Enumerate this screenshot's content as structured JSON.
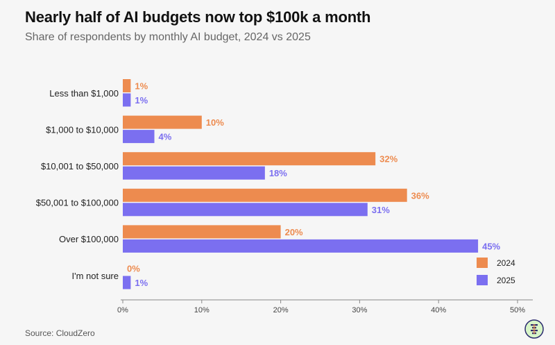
{
  "title": "Nearly half of AI budgets now top $100k a month",
  "subtitle": "Share of respondents by monthly AI budget, 2024 vs 2025",
  "source": "Source: CloudZero",
  "logo_icon": "cloudzero-logo-icon",
  "chart_data": {
    "type": "bar",
    "orientation": "horizontal",
    "categories": [
      "Less than $1,000",
      "$1,000 to $10,000",
      "$10,001 to $50,000",
      "$50,001 to $100,000",
      "Over $100,000",
      "I'm not sure"
    ],
    "series": [
      {
        "name": "2024",
        "color": "#ed8b4f",
        "values": [
          1,
          10,
          32,
          36,
          20,
          0
        ]
      },
      {
        "name": "2025",
        "color": "#7b6ff0",
        "values": [
          1,
          4,
          18,
          31,
          45,
          1
        ]
      }
    ],
    "value_suffix": "%",
    "xlim": [
      0,
      52
    ],
    "x_ticks": [
      0,
      10,
      20,
      30,
      40,
      50
    ],
    "x_tick_labels": [
      "0%",
      "10%",
      "20%",
      "30%",
      "40%",
      "50%"
    ],
    "data_labels": [
      [
        "1%",
        "10%",
        "32%",
        "36%",
        "20%",
        "0%"
      ],
      [
        "1%",
        "4%",
        "18%",
        "31%",
        "45%",
        "1%"
      ]
    ],
    "legend": "bottom-right",
    "grid": false
  }
}
